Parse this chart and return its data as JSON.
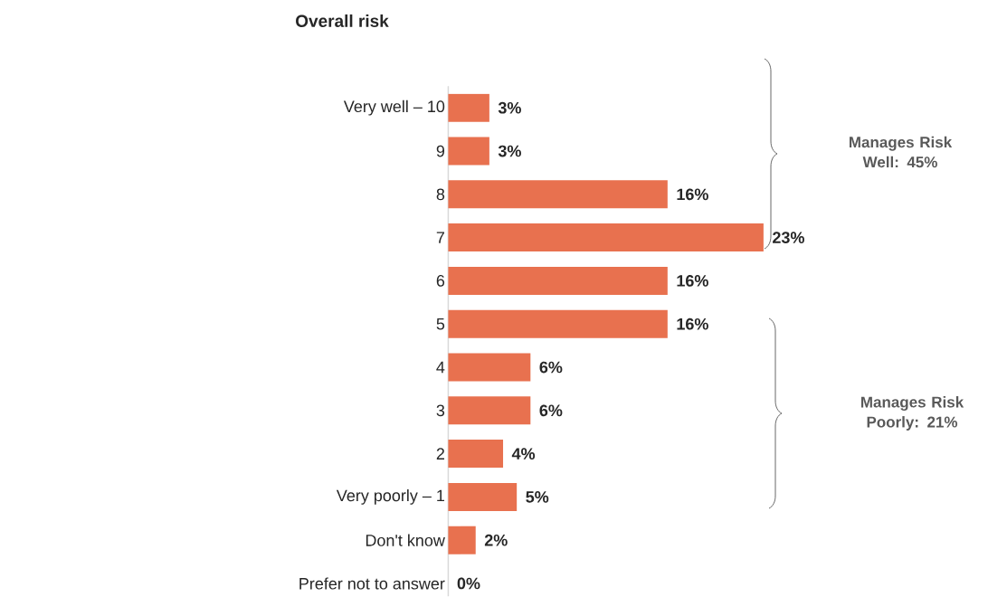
{
  "chart_data": {
    "type": "bar",
    "orientation": "horizontal",
    "title": "Overall risk",
    "categories": [
      "Very well – 10",
      "9",
      "8",
      "7",
      "6",
      "5",
      "4",
      "3",
      "2",
      "Very poorly – 1",
      "Don't know",
      "Prefer not to answer"
    ],
    "values": [
      3,
      3,
      16,
      23,
      16,
      16,
      6,
      6,
      4,
      5,
      2,
      0
    ],
    "value_labels": [
      "3%",
      "3%",
      "16%",
      "23%",
      "16%",
      "16%",
      "6%",
      "6%",
      "4%",
      "5%",
      "2%",
      "0%"
    ],
    "color": "#e8714f",
    "annotations": [
      "Manages Risk Well: 45%",
      "Manages Risk Poorly: 21%"
    ]
  }
}
